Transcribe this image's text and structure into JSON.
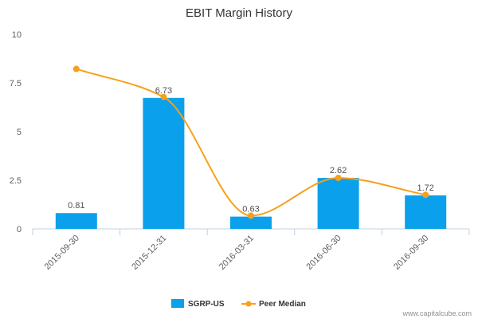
{
  "chart_data": {
    "type": "bar",
    "title": "EBIT Margin History",
    "categories": [
      "2015-09-30",
      "2015-12-31",
      "2016-03-31",
      "2016-06-30",
      "2016-09-30"
    ],
    "series": [
      {
        "name": "SGRP-US",
        "type": "bar",
        "color": "#0aa0ec",
        "values": [
          0.81,
          6.73,
          0.63,
          2.62,
          1.72
        ],
        "labels": [
          "0.81",
          "6.73",
          "0.63",
          "2.62",
          "1.72"
        ]
      },
      {
        "name": "Peer Median",
        "type": "line",
        "color": "#f6a11b",
        "values": [
          8.22,
          6.78,
          0.68,
          2.62,
          1.75
        ]
      }
    ],
    "yticks": [
      "0",
      "2.5",
      "5",
      "7.5",
      "10"
    ],
    "ylim": [
      0,
      10
    ],
    "grid": false,
    "legend": "bottom-center"
  },
  "watermark": "www.capitalcube.com"
}
